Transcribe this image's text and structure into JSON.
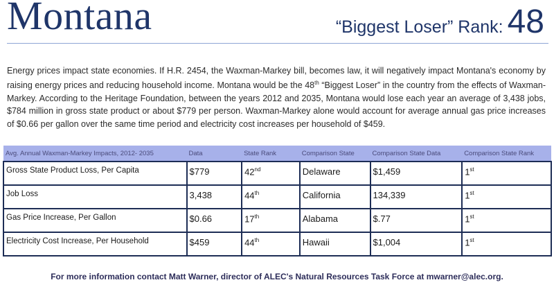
{
  "header": {
    "title": "Montana",
    "rank_label": "“Biggest Loser” Rank:",
    "rank_number": "48"
  },
  "intro": {
    "part1": "Energy prices impact state economies. If H.R. 2454, the Waxman-Markey bill, becomes law, it will negatively impact Montana's economy by raising energy prices and reducing household income.  Montana would be the 48",
    "sup": "th",
    "part2": " “Biggest Loser” in the country from the effects of Waxman-Markey.  According to the Heritage Foundation, between the years 2012 and 2035, Montana would lose each year an average of 3,438 jobs, $784 million in gross state product or about $779 per person.  Waxman-Markey alone would account for average annual gas price increases of $0.66 per gallon over the same time period and electricity cost increases per household of $459."
  },
  "table": {
    "headers": [
      "Avg. Annual Waxman-Markey Impacts, 2012- 2035",
      "Data",
      "State Rank",
      "Comparison State",
      "Comparison State Data",
      "Comparison State Rank"
    ],
    "rows": [
      {
        "metric": "Gross State Product Loss, Per Capita",
        "data": "$779",
        "rank": "42",
        "rank_sup": "nd",
        "comp_state": "Delaware",
        "comp_data": "$1,459",
        "comp_rank": "1",
        "comp_rank_sup": "st"
      },
      {
        "metric": "Job Loss",
        "data": "3,438",
        "rank": "44",
        "rank_sup": "th",
        "comp_state": "California",
        "comp_data": "134,339",
        "comp_rank": "1",
        "comp_rank_sup": "st"
      },
      {
        "metric": "Gas Price Increase, Per Gallon",
        "data": "$0.66",
        "rank": "17",
        "rank_sup": "th",
        "comp_state": "Alabama",
        "comp_data": "$.77",
        "comp_rank": "1",
        "comp_rank_sup": "st"
      },
      {
        "metric": "Electricity Cost Increase, Per Household",
        "data": "$459",
        "rank": "44",
        "rank_sup": "th",
        "comp_state": "Hawaii",
        "comp_data": "$1,004",
        "comp_rank": "1",
        "comp_rank_sup": "st"
      }
    ]
  },
  "footer": {
    "text": "For more information contact Matt Warner, director of ALEC's Natural Resources Task Force at mwarner@alec.org."
  },
  "colors": {
    "title": "#1f3569",
    "header_fill": "#a7b1ea",
    "table_border": "#1d2d55"
  }
}
